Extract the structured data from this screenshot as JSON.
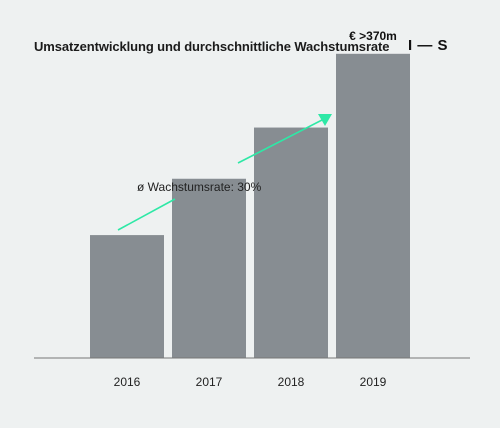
{
  "header": {
    "title": "Umsatzentwicklung und durchschnittliche Wachstumsrate",
    "logo": "I — S"
  },
  "colors": {
    "background": "#eef1f1",
    "bar": "#878d92",
    "baseline": "#777777",
    "arrow": "#2ee8a6"
  },
  "chart_data": {
    "type": "bar",
    "title": "Umsatzentwicklung und durchschnittliche Wachstumsrate",
    "categories": [
      "2016",
      "2017",
      "2018",
      "2019"
    ],
    "values": [
      120,
      175,
      225,
      297
    ],
    "unit": "relative bar height (unlabeled axis)",
    "ylim": [
      0,
      330
    ],
    "grid": false,
    "legend": "none",
    "data_labels": [
      null,
      null,
      null,
      "€ >370m"
    ],
    "annotation": {
      "text": "ø Wachstumsrate: 30%",
      "arrow": "green upward trend arrow across bars"
    }
  }
}
